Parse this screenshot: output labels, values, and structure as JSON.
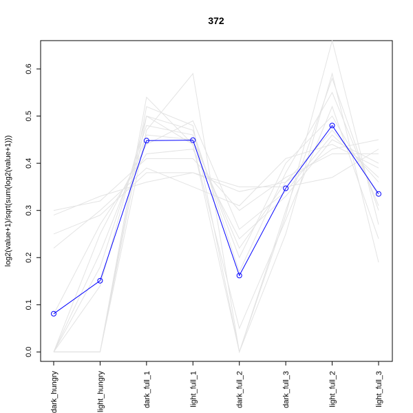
{
  "chart_data": {
    "type": "line",
    "title": "372",
    "xlabel": "",
    "ylabel": "log2(value+1)/sqrt(sum(log2(value+1)))",
    "categories": [
      "dark_hungry",
      "light_hungry",
      "dark_full_1",
      "light_full_1",
      "dark_full_2",
      "dark_full_3",
      "light_full_2",
      "light_full_3"
    ],
    "yticks": [
      0.0,
      0.1,
      0.2,
      0.3,
      0.4,
      0.5,
      0.6
    ],
    "ylim": [
      -0.02,
      0.66
    ],
    "grid": false,
    "colors": {
      "highlight": "#0000ff",
      "background": "#e3e3e3"
    },
    "series": [
      {
        "values": [
          0.081,
          0.151,
          0.448,
          0.449,
          0.162,
          0.347,
          0.48,
          0.335
        ],
        "highlight": true
      },
      {
        "values": [
          0.0,
          0.0,
          0.47,
          0.59,
          0.0,
          0.29,
          0.66,
          0.27
        ]
      },
      {
        "values": [
          0.0,
          0.0,
          0.54,
          0.44,
          0.0,
          0.25,
          0.59,
          0.19
        ]
      },
      {
        "values": [
          0.0,
          0.0,
          0.52,
          0.48,
          0.0,
          0.3,
          0.58,
          0.3
        ]
      },
      {
        "values": [
          0.0,
          0.14,
          0.5,
          0.47,
          0.17,
          0.38,
          0.55,
          0.31
        ]
      },
      {
        "values": [
          0.0,
          0.18,
          0.48,
          0.46,
          0.2,
          0.4,
          0.5,
          0.33
        ]
      },
      {
        "values": [
          0.0,
          0.21,
          0.46,
          0.45,
          0.22,
          0.36,
          0.47,
          0.36
        ]
      },
      {
        "values": [
          0.22,
          0.3,
          0.39,
          0.35,
          0.31,
          0.41,
          0.44,
          0.39
        ]
      },
      {
        "values": [
          0.25,
          0.29,
          0.38,
          0.38,
          0.34,
          0.36,
          0.43,
          0.45
        ]
      },
      {
        "values": [
          0.29,
          0.33,
          0.36,
          0.38,
          0.35,
          0.35,
          0.37,
          0.43
        ]
      },
      {
        "values": [
          0.3,
          0.32,
          0.41,
          0.41,
          0.3,
          0.37,
          0.42,
          0.42
        ]
      },
      {
        "values": [
          0.08,
          0.27,
          0.42,
          0.43,
          0.24,
          0.33,
          0.45,
          0.4
        ]
      },
      {
        "values": [
          0.0,
          0.25,
          0.44,
          0.49,
          0.26,
          0.34,
          0.46,
          0.37
        ]
      },
      {
        "values": [
          0.0,
          0.0,
          0.5,
          0.44,
          0.05,
          0.28,
          0.52,
          0.24
        ]
      }
    ]
  }
}
